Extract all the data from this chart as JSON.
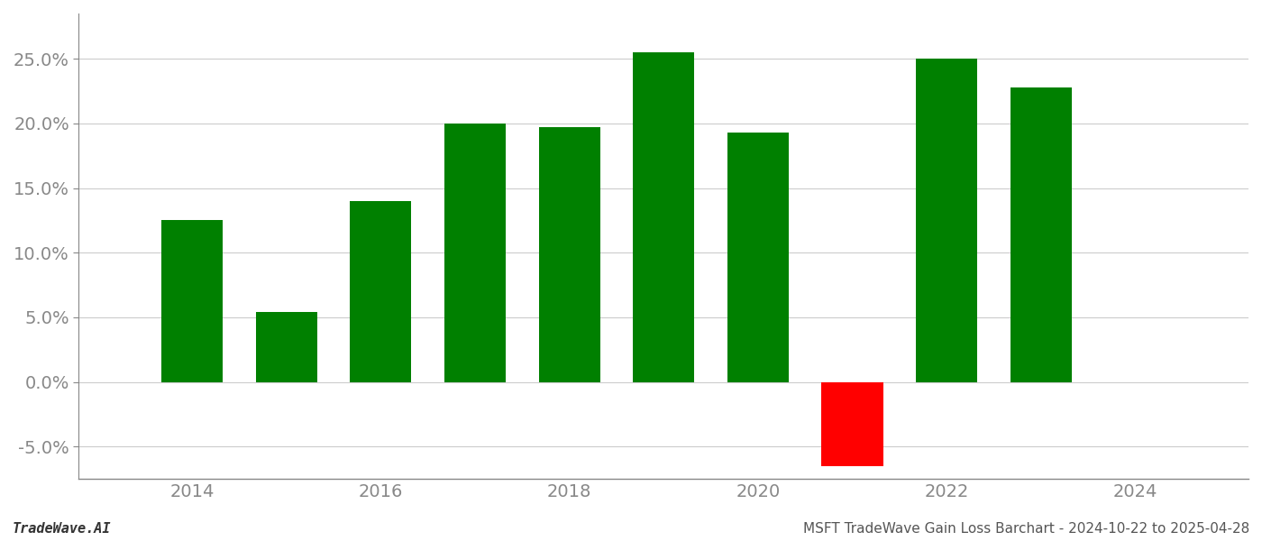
{
  "years": [
    2014,
    2015,
    2016,
    2017,
    2018,
    2019,
    2020,
    2021,
    2022,
    2023
  ],
  "values": [
    0.125,
    0.054,
    0.14,
    0.2,
    0.197,
    0.255,
    0.193,
    -0.065,
    0.25,
    0.228
  ],
  "colors": [
    "#008000",
    "#008000",
    "#008000",
    "#008000",
    "#008000",
    "#008000",
    "#008000",
    "#ff0000",
    "#008000",
    "#008000"
  ],
  "bar_width": 0.65,
  "ylim": [
    -0.075,
    0.285
  ],
  "yticks": [
    -0.05,
    0.0,
    0.05,
    0.1,
    0.15,
    0.2,
    0.25
  ],
  "footer_left": "TradeWave.AI",
  "footer_right": "MSFT TradeWave Gain Loss Barchart - 2024-10-22 to 2025-04-28",
  "footer_fontsize": 11,
  "background_color": "#ffffff",
  "grid_color": "#cccccc",
  "xlim": [
    2012.8,
    2025.2
  ],
  "xticks": [
    2014,
    2016,
    2018,
    2020,
    2022,
    2024
  ],
  "tick_fontsize": 14,
  "spine_color": "#888888"
}
